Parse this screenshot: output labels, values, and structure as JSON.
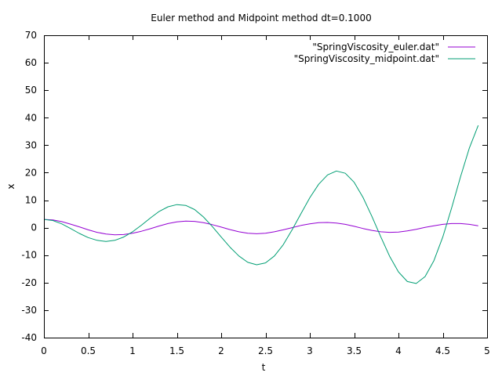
{
  "chart_data": {
    "type": "line",
    "title": "Euler method and Midpoint method dt=0.1000",
    "xlabel": "t",
    "ylabel": "x",
    "xlim": [
      0,
      5
    ],
    "ylim": [
      -40,
      70
    ],
    "xticks": [
      "0",
      "0.5",
      "1",
      "1.5",
      "2",
      "2.5",
      "3",
      "3.5",
      "4",
      "4.5",
      "5"
    ],
    "xtick_values": [
      0,
      0.5,
      1,
      1.5,
      2,
      2.5,
      3,
      3.5,
      4,
      4.5,
      5
    ],
    "yticks": [
      "-40",
      "-30",
      "-20",
      "-10",
      "0",
      "10",
      "20",
      "30",
      "40",
      "50",
      "60",
      "70"
    ],
    "ytick_values": [
      -40,
      -30,
      -20,
      -10,
      0,
      10,
      20,
      30,
      40,
      50,
      60,
      70
    ],
    "grid": false,
    "legend_position": "top-right",
    "x": [
      0,
      0.1,
      0.2,
      0.3,
      0.4,
      0.5,
      0.6,
      0.7,
      0.8,
      0.9,
      1.0,
      1.1,
      1.2,
      1.3,
      1.4,
      1.5,
      1.6,
      1.7,
      1.8,
      1.9,
      2.0,
      2.1,
      2.2,
      2.3,
      2.4,
      2.5,
      2.6,
      2.7,
      2.8,
      2.9,
      3.0,
      3.1,
      3.2,
      3.3,
      3.4,
      3.5,
      3.6,
      3.7,
      3.8,
      3.9,
      4.0,
      4.1,
      4.2,
      4.3,
      4.4,
      4.5,
      4.6,
      4.7,
      4.8,
      4.9
    ],
    "series": [
      {
        "name": "\"SpringViscosity_euler.dat\"",
        "color": "#9400d3",
        "values": [
          3.0,
          2.8,
          2.2,
          1.3,
          0.3,
          -0.8,
          -1.7,
          -2.3,
          -2.6,
          -2.5,
          -2.0,
          -1.3,
          -0.4,
          0.6,
          1.5,
          2.1,
          2.4,
          2.3,
          1.8,
          1.1,
          0.2,
          -0.7,
          -1.5,
          -2.0,
          -2.2,
          -2.0,
          -1.5,
          -0.8,
          0.0,
          0.8,
          1.4,
          1.8,
          1.9,
          1.7,
          1.2,
          0.5,
          -0.3,
          -1.0,
          -1.5,
          -1.7,
          -1.6,
          -1.2,
          -0.6,
          0.1,
          0.7,
          1.2,
          1.5,
          1.5,
          1.2,
          0.7
        ]
      },
      {
        "name": "\"SpringViscosity_midpoint.dat\"",
        "color": "#009e73",
        "values": [
          3.0,
          2.6,
          1.4,
          -0.3,
          -2.1,
          -3.6,
          -4.6,
          -5.0,
          -4.6,
          -3.4,
          -1.5,
          0.9,
          3.5,
          5.9,
          7.6,
          8.4,
          8.1,
          6.6,
          3.9,
          0.4,
          -3.4,
          -7.1,
          -10.3,
          -12.6,
          -13.5,
          -12.8,
          -10.3,
          -6.2,
          -0.8,
          5.1,
          10.9,
          15.8,
          19.2,
          20.6,
          19.8,
          16.5,
          11.0,
          4.1,
          -3.3,
          -10.4,
          -16.1,
          -19.6,
          -20.3,
          -17.8,
          -12.0,
          -3.4,
          7.2,
          18.5,
          29.0,
          37.2
        ]
      }
    ]
  }
}
